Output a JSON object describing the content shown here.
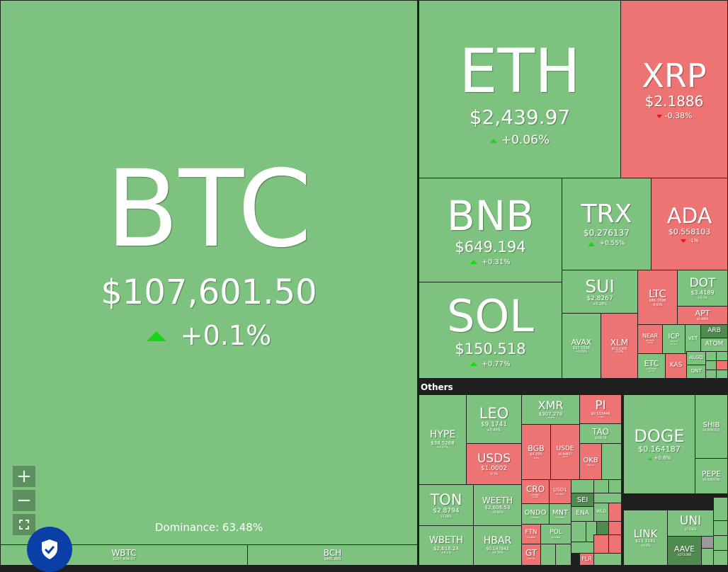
{
  "others_label": "Others",
  "dominance": "Dominance: 63.48%",
  "zoom": {
    "in": "+",
    "out": "−",
    "fit": "⛶"
  },
  "big": {
    "btc": {
      "symbol": "BTC",
      "price": "$107,601.50",
      "change": "+0.1%"
    },
    "eth": {
      "symbol": "ETH",
      "price": "$2,439.97",
      "change": "+0.06%"
    },
    "xrp": {
      "symbol": "XRP",
      "price": "$2.1886",
      "change": "-0.38%"
    },
    "bnb": {
      "symbol": "BNB",
      "price": "$649.194",
      "change": "+0.31%"
    },
    "sol": {
      "symbol": "SOL",
      "price": "$150.518",
      "change": "+0.77%"
    },
    "trx": {
      "symbol": "TRX",
      "price": "$0.276137",
      "change": "+0.55%"
    },
    "ada": {
      "symbol": "ADA",
      "price": "$0.558103",
      "change": "-1%"
    },
    "sui": {
      "symbol": "SUI",
      "price": "$2.8267",
      "change": "+0.28%"
    },
    "ltc": {
      "symbol": "LTC",
      "price": "$86.7698",
      "change": "-0.03%"
    },
    "dot": {
      "symbol": "DOT",
      "price": "$3.4189",
      "change": "+0.3%"
    },
    "apt": {
      "symbol": "APT",
      "price": "$4.8680"
    },
    "avax": {
      "symbol": "AVAX",
      "price": "$17.5538",
      "change": "+0.05%"
    },
    "xlm": {
      "symbol": "XLM",
      "price": "$0.237465",
      "change": "-0.3%"
    },
    "near": {
      "symbol": "NEAR",
      "price": "$2.1290",
      "change": "-0.5%"
    },
    "icp": {
      "symbol": "ICP",
      "price": "$4.878",
      "change": "+0.1%"
    },
    "vet": {
      "symbol": "VET"
    },
    "arb": {
      "symbol": "ARB"
    },
    "atom": {
      "symbol": "ATOM"
    },
    "etc": {
      "symbol": "ETC",
      "price": "$16.4700",
      "change": "+0.1%"
    },
    "kas": {
      "symbol": "KAS"
    },
    "algo": {
      "symbol": "ALGO"
    },
    "qnt": {
      "symbol": "QNT"
    }
  },
  "wrapped": {
    "wbtc": {
      "symbol": "WBTC",
      "price": "$107,404.07"
    },
    "bch": {
      "symbol": "BCH",
      "price": "$491.800"
    }
  },
  "others": {
    "hype": {
      "symbol": "HYPE",
      "price": "$38.5268",
      "change": "+4.07%"
    },
    "leo": {
      "symbol": "LEO",
      "price": "$9.1741",
      "change": "+0.46%"
    },
    "usds": {
      "symbol": "USDS",
      "price": "$1.0002",
      "change": "-0.7%"
    },
    "xmr": {
      "symbol": "XMR",
      "price": "$307.278",
      "change": "+0.05%"
    },
    "pi": {
      "symbol": "PI",
      "price": "$0.533446",
      "change": "-1.6%"
    },
    "tao": {
      "symbol": "TAO",
      "price": "$318.78"
    },
    "bgb": {
      "symbol": "BGB",
      "price": "$4.595",
      "change": "-0.4%"
    },
    "usde": {
      "symbol": "USDE",
      "price": "$0.99927",
      "change": "-0.1%"
    },
    "okb": {
      "symbol": "OKB",
      "price": "$52.12"
    },
    "ton": {
      "symbol": "TON",
      "price": "$2.8794",
      "change": "+1.06%"
    },
    "weeth": {
      "symbol": "WEETH",
      "price": "$2,606.53",
      "change": "+0.06%"
    },
    "cro": {
      "symbol": "CRO",
      "price": "$0.0862",
      "change": "-0.5%"
    },
    "usd1": {
      "symbol": "USD1",
      "price": "$1.0003"
    },
    "wbeth": {
      "symbol": "WBETH",
      "price": "$2,618.24",
      "change": "+0.1%"
    },
    "hbar": {
      "symbol": "HBAR",
      "price": "$0.147842",
      "change": "+0.79%"
    },
    "ondo": {
      "symbol": "ONDO",
      "price": "$0.7629"
    },
    "mnt": {
      "symbol": "MNT",
      "price": "$0.5920"
    },
    "ftn": {
      "symbol": "FTN",
      "price": "$4.0660"
    },
    "pol": {
      "symbol": "POL",
      "price": "$0.1800"
    },
    "gt": {
      "symbol": "GT",
      "price": "$16.10"
    },
    "sei": {
      "symbol": "SEI"
    },
    "ena": {
      "symbol": "ENA"
    },
    "wld": {
      "symbol": "WLD"
    },
    "flr": {
      "symbol": "FLR"
    },
    "doge": {
      "symbol": "DOGE",
      "price": "$0.164187",
      "change": "+0.8%"
    },
    "shib": {
      "symbol": "SHIB",
      "price": "$0.0000115"
    },
    "pepe": {
      "symbol": "PEPE",
      "price": "$0.0000100"
    },
    "link": {
      "symbol": "LINK",
      "price": "$13.3181",
      "change": "+0.3%"
    },
    "uni": {
      "symbol": "UNI",
      "price": "$7.2360"
    },
    "aave": {
      "symbol": "AAVE",
      "price": "$273.086"
    }
  },
  "colors": {
    "up": "#7dc27e",
    "down": "#ee7373",
    "background": "#1f1f1f",
    "shield": "#0b3fa8"
  }
}
